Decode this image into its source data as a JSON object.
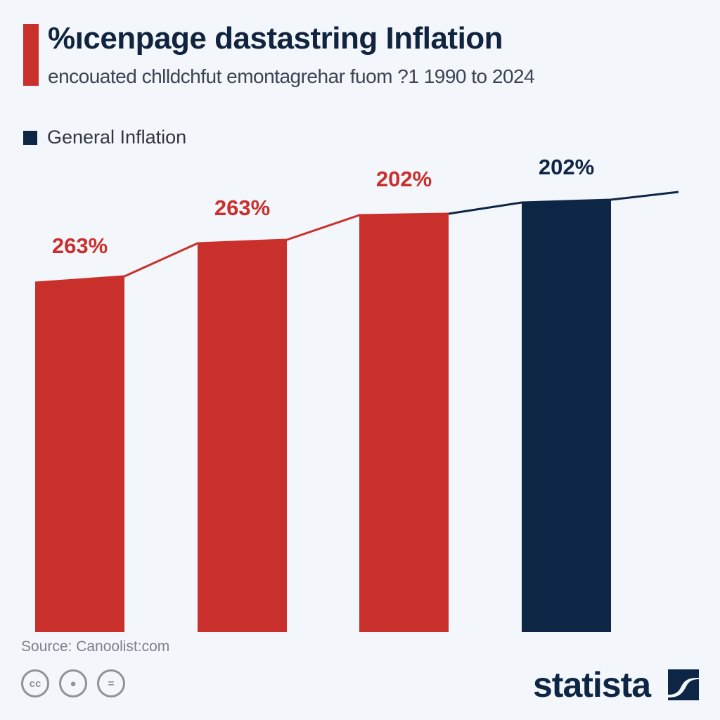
{
  "header": {
    "title": "%ıcenpage dastastring Inflation",
    "subtitle": "encouated chlldchfut emontagrehar fuom ?1 1990 to 2024"
  },
  "chart_data": {
    "type": "bar",
    "categories": [
      "",
      "",
      "",
      ""
    ],
    "data_labels": [
      "263%",
      "263%",
      "202%",
      "202%"
    ],
    "values": [
      263,
      263,
      202,
      202
    ],
    "series": [
      {
        "name": "General Inflation",
        "color": "#0e2646"
      }
    ],
    "bar_colors": [
      "#c9302c",
      "#c9302c",
      "#c9302c",
      "#0e2646"
    ],
    "legend": "top-left",
    "grid": false,
    "trend_line": true
  },
  "footer": {
    "source": "Source: Canoolist:com",
    "brand": "statista",
    "license_icons": [
      "cc-icon",
      "by-icon",
      "nd-icon"
    ]
  }
}
